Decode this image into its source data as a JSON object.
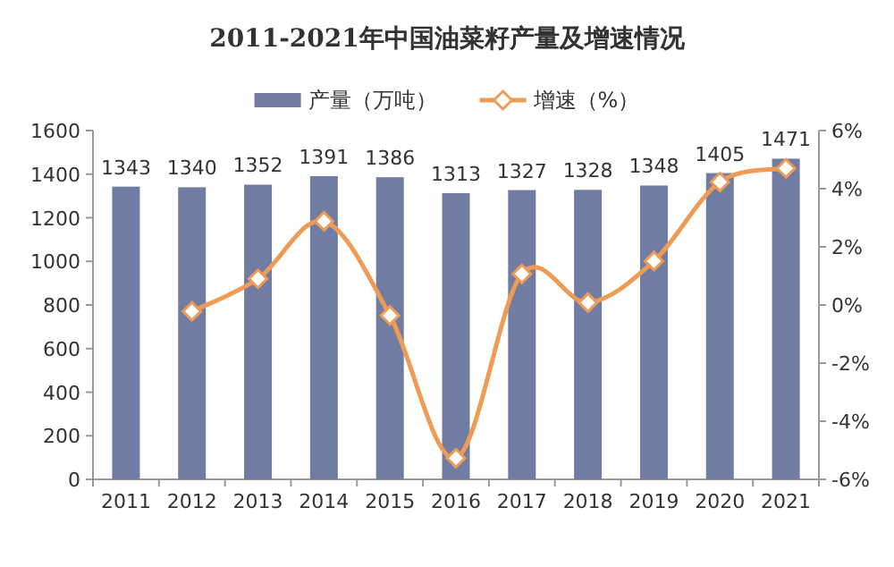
{
  "chart_data": {
    "type": "bar",
    "title": "2011-2021年中国油菜籽产量及增速情况",
    "categories": [
      "2011",
      "2012",
      "2013",
      "2014",
      "2015",
      "2016",
      "2017",
      "2018",
      "2019",
      "2020",
      "2021"
    ],
    "series": [
      {
        "name": "产量（万吨）",
        "color": "#717ca3",
        "values": [
          1343,
          1340,
          1352,
          1391,
          1386,
          1313,
          1327,
          1328,
          1348,
          1405,
          1471
        ],
        "value_labels": [
          "1343",
          "1340",
          "1352",
          "1391",
          "1386",
          "1313",
          "1327",
          "1328",
          "1348",
          "1405",
          "1471"
        ]
      },
      {
        "name": "增速（%）",
        "type": "line",
        "axis": "y2",
        "color": "#ed9b55",
        "marker": "diamond",
        "values": [
          null,
          -0.22,
          0.9,
          2.88,
          -0.36,
          -5.27,
          1.07,
          0.08,
          1.51,
          4.23,
          4.7
        ]
      }
    ],
    "ylim": [
      0,
      1600
    ],
    "yticks": [
      0,
      200,
      400,
      600,
      800,
      1000,
      1200,
      1400,
      1600
    ],
    "y2lim": [
      -6,
      6
    ],
    "y2ticks": [
      {
        "value": -6,
        "label": "-6%"
      },
      {
        "value": -4,
        "label": "-4%"
      },
      {
        "value": -2,
        "label": "-2%"
      },
      {
        "value": 0,
        "label": "0%"
      },
      {
        "value": 2,
        "label": "2%"
      },
      {
        "value": 4,
        "label": "4%"
      },
      {
        "value": 6,
        "label": "6%"
      }
    ],
    "legend": "top"
  }
}
